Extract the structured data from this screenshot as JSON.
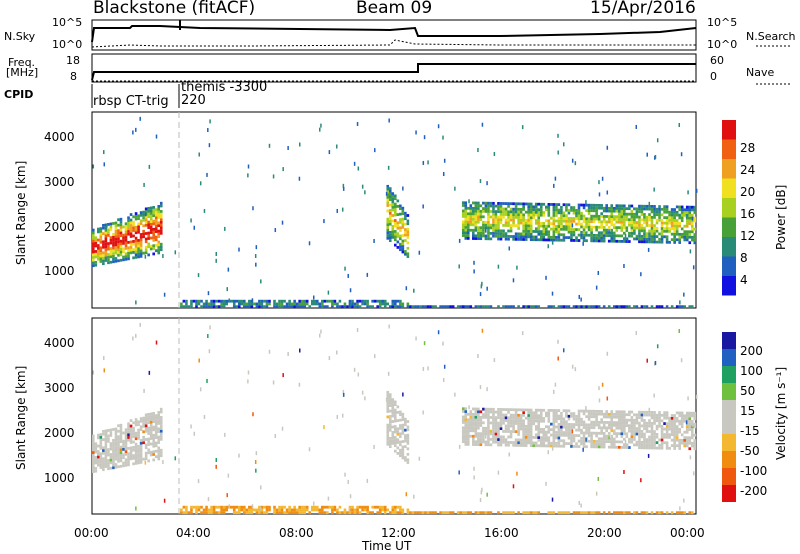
{
  "header": {
    "station": "Blackstone (fitACF)",
    "beam": "Beam 09",
    "date": "15/Apr/2016"
  },
  "panel_labels": {
    "nsky": "N.Sky",
    "nsearch": "N.Search",
    "freq_line1": "Freq.",
    "freq_line2": "[MHz]",
    "nave": "Nave",
    "cpid": "CPID"
  },
  "top_axes": {
    "nsky_left_top": "10^5",
    "nsky_left_bottom": "10^0",
    "nsky_right_top": "10^5",
    "nsky_right_bottom": "10^0",
    "freq_left_top": "18",
    "freq_left_bottom": "8",
    "nave_right_top": "60",
    "nave_right_bottom": "0"
  },
  "cpid_labels": {
    "first": "rbsp CT-trig",
    "second_line1": "themis -3300",
    "second_line2": "220"
  },
  "colors": {
    "power": [
      "#1010e0",
      "#1f5fc0",
      "#2a8a78",
      "#48a038",
      "#a8d020",
      "#f0e020",
      "#f0a020",
      "#f06010",
      "#e01010"
    ],
    "velocity": [
      "#e01010",
      "#f05810",
      "#f08c10",
      "#f4b830",
      "#c8c8c0",
      "#c8c8c0",
      "#70c040",
      "#20a060",
      "#2060c0",
      "#1818a0"
    ],
    "ground_scatter": "#c8c8c0"
  },
  "chart_data": [
    {
      "type": "heatmap",
      "name": "power",
      "ylabel": "Slant Range [km]",
      "xlabel": "",
      "xlim": [
        "00:00",
        "24:00"
      ],
      "ylim": [
        200,
        4500
      ],
      "yticks": [
        "1000",
        "2000",
        "3000",
        "4000"
      ],
      "colorbar": {
        "label": "Power [dB]",
        "range": [
          0,
          32
        ],
        "ticks": [
          "4",
          "8",
          "12",
          "16",
          "20",
          "24",
          "28"
        ]
      }
    },
    {
      "type": "heatmap",
      "name": "velocity",
      "ylabel": "Slant Range [km]",
      "xlabel": "Time UT",
      "xlim": [
        "00:00",
        "24:00"
      ],
      "ylim": [
        200,
        4500
      ],
      "yticks": [
        "1000",
        "2000",
        "3000",
        "4000"
      ],
      "xticks": [
        "00:00",
        "04:00",
        "08:00",
        "12:00",
        "16:00",
        "20:00",
        "00:00"
      ],
      "colorbar": {
        "label": "Velocity [m s⁻¹]",
        "ticks": [
          "200",
          "100",
          "50",
          "15",
          "-15",
          "-50",
          "-100",
          "-200"
        ]
      }
    }
  ]
}
